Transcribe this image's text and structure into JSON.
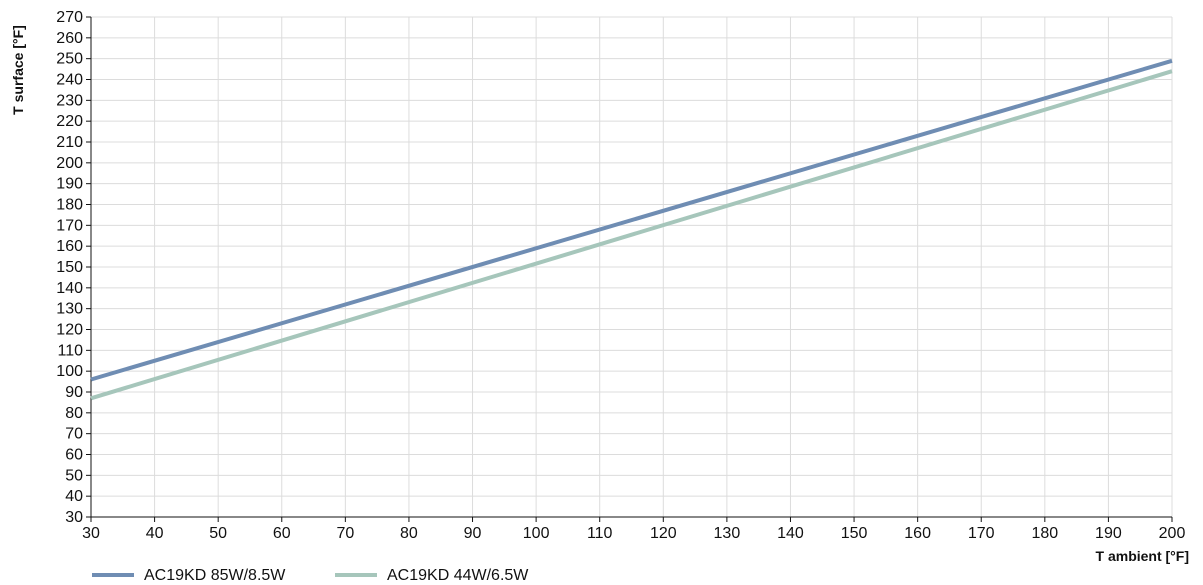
{
  "chart_data": {
    "type": "line",
    "title": "",
    "xlabel": "T ambient [°F]",
    "ylabel": "T surface [°F]",
    "xlim": [
      30,
      200
    ],
    "ylim": [
      30,
      270
    ],
    "xticks": [
      30,
      40,
      50,
      60,
      70,
      80,
      90,
      100,
      110,
      120,
      130,
      140,
      150,
      160,
      170,
      180,
      190,
      200
    ],
    "yticks": [
      30,
      40,
      50,
      60,
      70,
      80,
      90,
      100,
      110,
      120,
      130,
      140,
      150,
      160,
      170,
      180,
      190,
      200,
      210,
      220,
      230,
      240,
      250,
      260,
      270
    ],
    "grid": true,
    "legend_position": "bottom-left",
    "series": [
      {
        "name": "AC19KD 85W/8.5W",
        "color": "#6f8db3",
        "x": [
          30,
          200
        ],
        "y": [
          96,
          249
        ]
      },
      {
        "name": "AC19KD 44W/6.5W",
        "color": "#a6c6bb",
        "x": [
          30,
          200
        ],
        "y": [
          87,
          244
        ]
      }
    ]
  }
}
